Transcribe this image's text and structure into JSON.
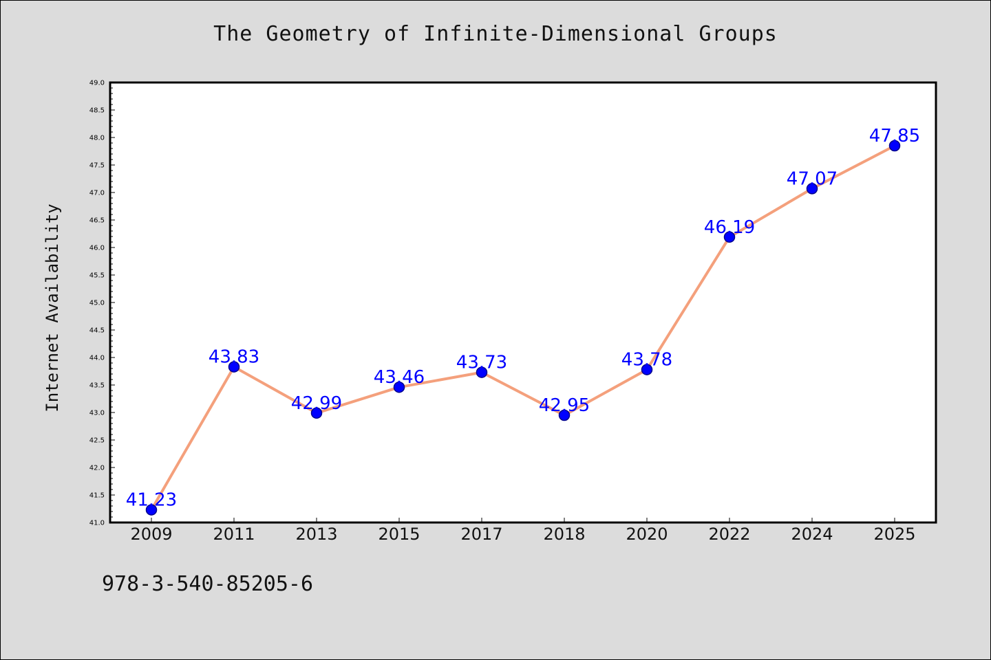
{
  "chart_data": {
    "type": "line",
    "title": "The Geometry of Infinite-Dimensional Groups",
    "xlabel": "",
    "ylabel": "Internet Availability",
    "categories": [
      "2009",
      "2011",
      "2013",
      "2015",
      "2017",
      "2018",
      "2020",
      "2022",
      "2024",
      "2025"
    ],
    "series": [
      {
        "values": [
          41.23,
          43.83,
          42.99,
          43.46,
          43.73,
          42.95,
          43.78,
          46.19,
          47.07,
          47.85
        ],
        "labels": [
          "41.23",
          "43.83",
          "42.99",
          "43.46",
          "43.73",
          "42.95",
          "43.78",
          "46.19",
          "47.07",
          "47.85"
        ]
      }
    ],
    "ylim": [
      41.0,
      49.0
    ],
    "yticks": [
      "41.0",
      "41.5",
      "42.0",
      "42.5",
      "43.0",
      "43.5",
      "44.0",
      "44.5",
      "45.0",
      "45.5",
      "46.0",
      "46.5",
      "47.0",
      "47.5",
      "48.0",
      "48.5",
      "49.0"
    ],
    "grid": false,
    "legend": "none",
    "colors": {
      "line": "#f4a07c",
      "marker": "#0000ff",
      "marker_edge": "#00008b",
      "data_label": "#0000ff",
      "plot_background": "#ffffff",
      "figure_background": "#dcdcdc"
    }
  },
  "footer": {
    "code": "978-3-540-85205-6"
  }
}
